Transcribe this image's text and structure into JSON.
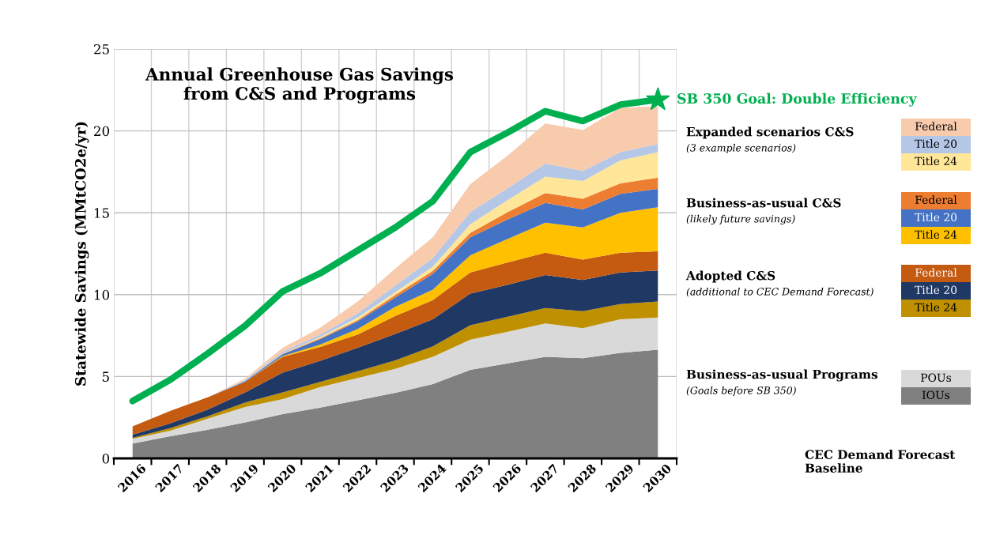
{
  "chart_data": {
    "type": "area",
    "stacked": true,
    "title": "Annual Greenhouse Gas Savings\nfrom C&S and Programs",
    "ylabel": "Statewide Savings (MMtCO2e/yr)",
    "categories": [
      "2016",
      "2017",
      "2018",
      "2019",
      "2020",
      "2021",
      "2022",
      "2023",
      "2024",
      "2025",
      "2026",
      "2027",
      "2028",
      "2029",
      "2030"
    ],
    "ylim": [
      0,
      25
    ],
    "yticks": [
      0,
      5,
      10,
      15,
      20,
      25
    ],
    "grid": true,
    "legend": "right",
    "series": [
      {
        "name": "IOUs",
        "color": "#808080",
        "values": [
          0.9,
          1.35,
          1.75,
          2.2,
          2.7,
          3.1,
          3.55,
          4.0,
          4.54,
          5.4,
          5.8,
          6.2,
          6.12,
          6.44,
          6.64
        ]
      },
      {
        "name": "POUs",
        "color": "#d9d9d9",
        "values": [
          0.3,
          0.34,
          0.67,
          0.94,
          0.92,
          1.25,
          1.36,
          1.47,
          1.66,
          1.85,
          1.93,
          2.04,
          1.83,
          2.06,
          1.96
        ]
      },
      {
        "name": "Title 24",
        "color": "#bf9000",
        "values": [
          0.05,
          0.16,
          0.15,
          0.27,
          0.41,
          0.32,
          0.41,
          0.52,
          0.64,
          0.88,
          0.92,
          0.94,
          1.04,
          0.92,
          0.98
        ]
      },
      {
        "name": "Title 20",
        "color": "#203864",
        "values": [
          0.2,
          0.28,
          0.41,
          0.62,
          1.21,
          1.29,
          1.44,
          1.61,
          1.66,
          1.93,
          1.95,
          2.02,
          1.91,
          1.93,
          1.89
        ]
      },
      {
        "name": "Federal",
        "color": "#c55a11",
        "values": [
          0.51,
          0.77,
          0.75,
          0.64,
          0.96,
          0.84,
          0.81,
          1.1,
          1.16,
          1.29,
          1.37,
          1.36,
          1.24,
          1.21,
          1.17
        ]
      },
      {
        "name": "Title 24",
        "color": "#ffc000",
        "values": [
          0,
          0,
          0,
          0,
          0.05,
          0.15,
          0.33,
          0.55,
          0.64,
          1.05,
          1.43,
          1.84,
          1.96,
          2.44,
          2.69
        ]
      },
      {
        "name": "Title 20",
        "color": "#4472c4",
        "values": [
          0,
          0,
          0,
          0.05,
          0.11,
          0.33,
          0.47,
          0.57,
          0.97,
          1.1,
          1.2,
          1.2,
          1.1,
          1.15,
          1.13
        ]
      },
      {
        "name": "Federal",
        "color": "#ed7d31",
        "values": [
          0,
          0,
          0,
          0,
          0.02,
          0.05,
          0.08,
          0.16,
          0.18,
          0.27,
          0.45,
          0.6,
          0.66,
          0.65,
          0.69
        ]
      },
      {
        "name": "Title 24",
        "color": "#ffe699",
        "values": [
          0,
          0,
          0,
          0,
          0.02,
          0.08,
          0.15,
          0.17,
          0.25,
          0.53,
          0.73,
          1.0,
          1.08,
          1.4,
          1.55
        ]
      },
      {
        "name": "Title 20",
        "color": "#b4c7e7",
        "values": [
          0,
          0,
          0,
          0.06,
          0.12,
          0.16,
          0.26,
          0.4,
          0.54,
          0.75,
          0.72,
          0.8,
          0.61,
          0.5,
          0.5
        ]
      },
      {
        "name": "Federal",
        "color": "#f8cbad",
        "values": [
          0,
          0,
          0,
          0.1,
          0.24,
          0.4,
          0.72,
          1.05,
          1.26,
          1.7,
          2.0,
          2.45,
          2.5,
          2.7,
          2.3
        ]
      },
      {
        "name": "SB 350 Goal: Double Efficiency",
        "type": "line",
        "color": "#00b050",
        "values": [
          3.5,
          4.8,
          6.4,
          8.1,
          10.2,
          11.3,
          12.7,
          14.1,
          15.7,
          18.7,
          19.9,
          21.2,
          20.6,
          21.6,
          21.9
        ]
      }
    ],
    "annotations": [
      "Expanded scenarios C&S",
      "(3 example scenarios)",
      "Business-as-usual C&S",
      "(likely future savings)",
      "Adopted C&S",
      "(additional to CEC Demand Forecast)",
      "Business-as-usual Programs",
      "(Goals before SB 350)",
      "CEC Demand Forecast Baseline"
    ]
  }
}
